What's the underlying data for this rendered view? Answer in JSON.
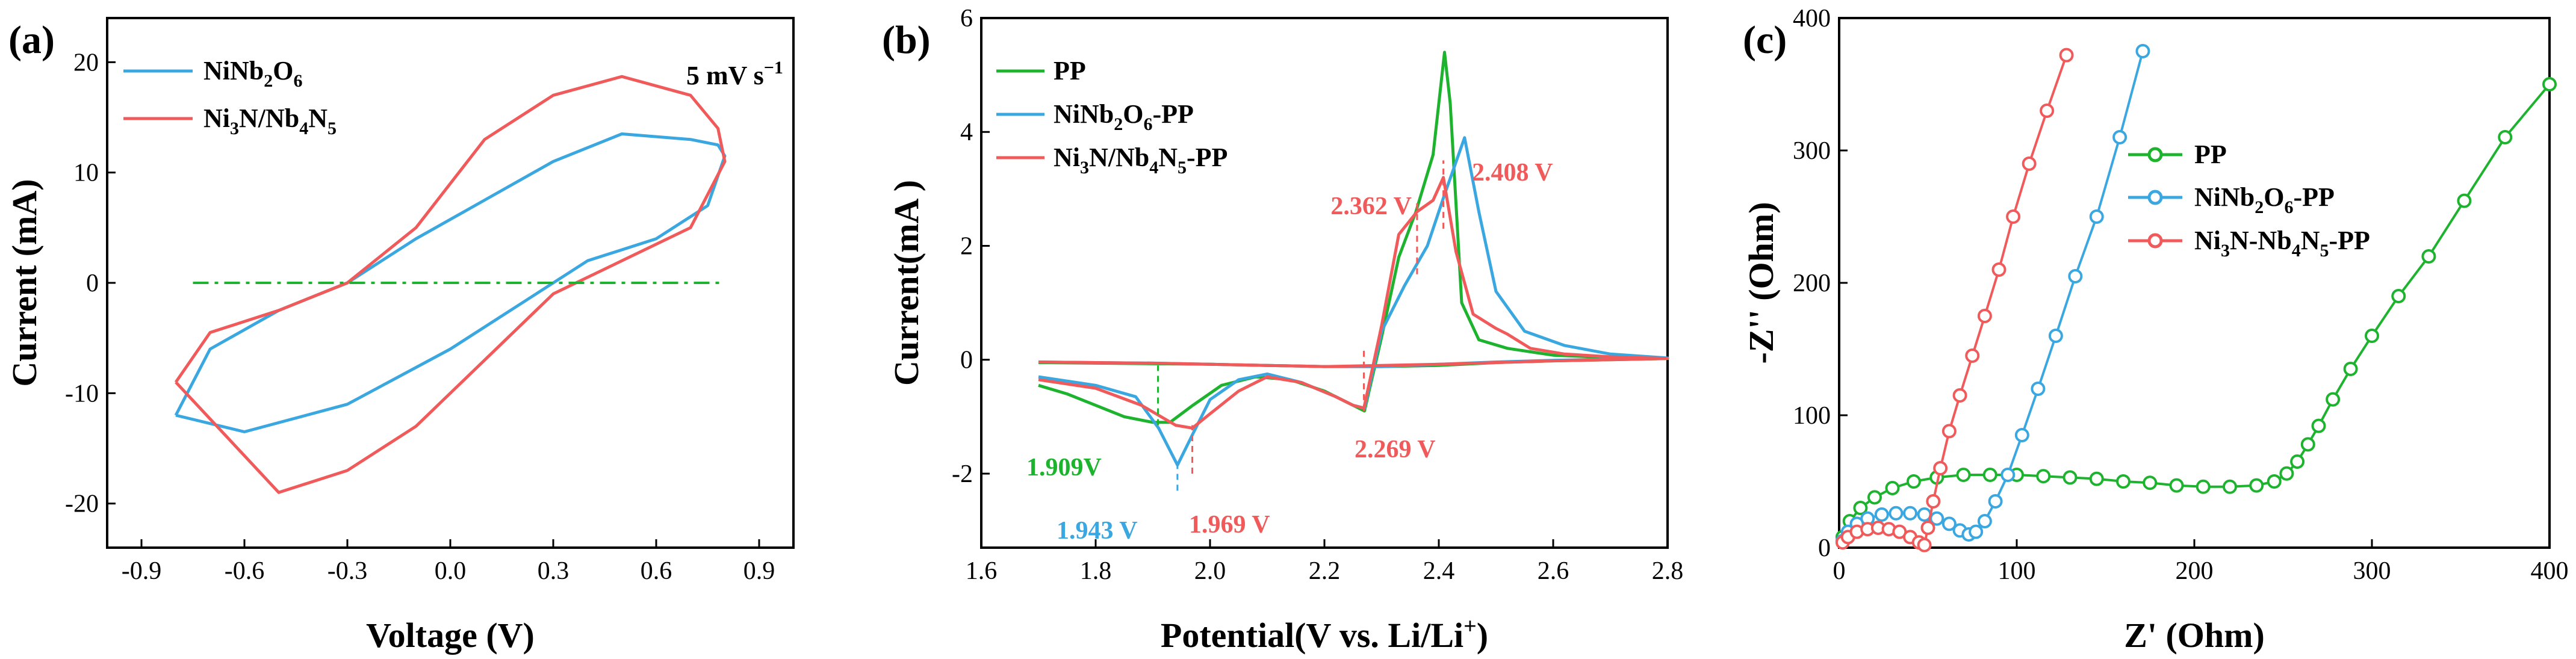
{
  "colors": {
    "green": "#1db32e",
    "blue": "#3aa7e0",
    "red": "#f05a5a",
    "dash_green": "#1db32e"
  },
  "chart_data": [
    {
      "type": "line",
      "panel_label": "(a)",
      "annotation": "5 mV s",
      "annotation_sup": "−1",
      "xlabel": "Voltage (V)",
      "ylabel": "Current (mA)",
      "xlim": [
        -1.0,
        1.0
      ],
      "ylim": [
        -24,
        24
      ],
      "xticks": [
        "-0.9",
        "-0.6",
        "-0.3",
        "0.0",
        "0.3",
        "0.6",
        "0.9"
      ],
      "yticks": [
        "-20",
        "-10",
        "0",
        "10",
        "20"
      ],
      "legend": [
        {
          "base": "NiNb",
          "sub1": "2",
          "mid": "O",
          "sub2": "6",
          "tail": "",
          "color": "blue"
        },
        {
          "base": "Ni",
          "sub1": "3",
          "mid": "N/Nb",
          "sub2": "4",
          "tail": "N",
          "sub3": "5",
          "color": "red"
        }
      ],
      "series": [
        {
          "name": "NiNb2O6",
          "color": "blue",
          "x": [
            -0.8,
            -0.6,
            -0.3,
            0.0,
            0.2,
            0.4,
            0.6,
            0.75,
            0.8,
            0.78,
            0.7,
            0.5,
            0.3,
            0.1,
            -0.1,
            -0.3,
            -0.5,
            -0.7,
            -0.8
          ],
          "y": [
            -12,
            -13.5,
            -11,
            -6,
            -2,
            2,
            4,
            7,
            11.5,
            12.5,
            13,
            13.5,
            11,
            7.5,
            4,
            0,
            -2.5,
            -6,
            -12
          ]
        },
        {
          "name": "Ni3N/Nb4N5",
          "color": "red",
          "x": [
            -0.8,
            -0.5,
            -0.3,
            -0.1,
            0.1,
            0.3,
            0.5,
            0.7,
            0.8,
            0.78,
            0.7,
            0.5,
            0.3,
            0.1,
            -0.1,
            -0.3,
            -0.5,
            -0.7,
            -0.8
          ],
          "y": [
            -9,
            -19,
            -17,
            -13,
            -7,
            -1,
            2,
            5,
            11,
            14,
            17,
            18.7,
            17,
            13,
            5,
            0,
            -2.5,
            -4.5,
            -9
          ]
        },
        {
          "name": "baseline",
          "color": "dash_green",
          "dashed": true,
          "x": [
            -0.75,
            0.8
          ],
          "y": [
            0,
            0
          ]
        }
      ]
    },
    {
      "type": "line",
      "panel_label": "(b)",
      "xlabel": "Potential(V vs. Li/Li",
      "xlabel_sup": "+",
      "xlabel_tail": ")",
      "ylabel": "Current(mA )",
      "xlim": [
        1.6,
        2.8
      ],
      "ylim": [
        -3.3,
        6.0
      ],
      "xticks": [
        "1.6",
        "1.8",
        "2.0",
        "2.2",
        "2.4",
        "2.6",
        "2.8"
      ],
      "yticks": [
        "-2",
        "0",
        "2",
        "4",
        "6"
      ],
      "legend": [
        {
          "base": "PP",
          "color": "green"
        },
        {
          "base": "NiNb",
          "sub1": "2",
          "mid": "O",
          "sub2": "6",
          "tail": "-PP",
          "color": "blue"
        },
        {
          "base": "Ni",
          "sub1": "3",
          "mid": "N/Nb",
          "sub2": "4",
          "tail": "N",
          "sub3": "5",
          "tail2": "-PP",
          "color": "red"
        }
      ],
      "annotations": [
        {
          "text": "2.362 V",
          "color": "red",
          "x": 2.362
        },
        {
          "text": "2.408 V",
          "color": "red",
          "x": 2.408
        },
        {
          "text": "2.269 V",
          "color": "red",
          "x": 2.269
        },
        {
          "text": "1.909V",
          "color": "green",
          "x": 1.909
        },
        {
          "text": "1.943 V",
          "color": "blue",
          "x": 1.943
        },
        {
          "text": "1.969 V",
          "color": "red",
          "x": 1.969
        }
      ],
      "series": [
        {
          "name": "PP",
          "color": "green",
          "x": [
            1.7,
            1.75,
            1.8,
            1.85,
            1.9,
            1.93,
            1.97,
            2.02,
            2.08,
            2.14,
            2.2,
            2.24,
            2.27,
            2.3,
            2.33,
            2.36,
            2.39,
            2.41,
            2.42,
            2.44,
            2.47,
            2.52,
            2.6,
            2.7,
            2.8,
            2.7,
            2.6,
            2.5,
            2.4,
            2.3,
            2.2,
            2.1,
            2.0,
            1.9,
            1.8,
            1.7
          ],
          "y": [
            -0.45,
            -0.6,
            -0.8,
            -1.0,
            -1.1,
            -1.1,
            -0.8,
            -0.45,
            -0.3,
            -0.35,
            -0.55,
            -0.75,
            -0.9,
            0.4,
            1.8,
            2.6,
            3.6,
            5.4,
            4.5,
            1.0,
            0.35,
            0.2,
            0.08,
            0.04,
            0.02,
            0.0,
            -0.02,
            -0.05,
            -0.1,
            -0.12,
            -0.12,
            -0.1,
            -0.08,
            -0.07,
            -0.06,
            -0.05
          ]
        },
        {
          "name": "NiNb2O6-PP",
          "color": "blue",
          "x": [
            1.7,
            1.8,
            1.87,
            1.91,
            1.943,
            1.97,
            2.0,
            2.05,
            2.1,
            2.16,
            2.22,
            2.25,
            2.27,
            2.3,
            2.34,
            2.38,
            2.41,
            2.445,
            2.47,
            2.5,
            2.55,
            2.62,
            2.7,
            2.8,
            2.7,
            2.6,
            2.5,
            2.4,
            2.3,
            2.2,
            2.1,
            2.0,
            1.9,
            1.8,
            1.7
          ],
          "y": [
            -0.3,
            -0.45,
            -0.65,
            -1.2,
            -1.85,
            -1.3,
            -0.7,
            -0.35,
            -0.25,
            -0.4,
            -0.65,
            -0.8,
            -0.85,
            0.5,
            1.3,
            2.0,
            2.9,
            3.9,
            2.6,
            1.2,
            0.5,
            0.25,
            0.1,
            0.03,
            0.01,
            -0.01,
            -0.04,
            -0.08,
            -0.12,
            -0.12,
            -0.1,
            -0.08,
            -0.06,
            -0.05,
            -0.04
          ]
        },
        {
          "name": "Ni3N/Nb4N5-PP",
          "color": "red",
          "x": [
            1.7,
            1.8,
            1.88,
            1.94,
            1.969,
            2.0,
            2.05,
            2.1,
            2.16,
            2.22,
            2.25,
            2.269,
            2.3,
            2.33,
            2.362,
            2.39,
            2.408,
            2.43,
            2.46,
            2.5,
            2.52,
            2.56,
            2.62,
            2.7,
            2.8,
            2.7,
            2.6,
            2.5,
            2.4,
            2.3,
            2.2,
            2.1,
            2.0,
            1.9,
            1.8,
            1.7
          ],
          "y": [
            -0.35,
            -0.5,
            -0.8,
            -1.15,
            -1.2,
            -0.95,
            -0.55,
            -0.3,
            -0.4,
            -0.65,
            -0.8,
            -0.85,
            0.6,
            2.2,
            2.6,
            2.8,
            3.2,
            1.9,
            0.8,
            0.55,
            0.45,
            0.2,
            0.1,
            0.05,
            0.02,
            0.0,
            -0.02,
            -0.05,
            -0.08,
            -0.1,
            -0.12,
            -0.1,
            -0.08,
            -0.06,
            -0.05,
            -0.04
          ]
        }
      ]
    },
    {
      "type": "scatter",
      "panel_label": "(c)",
      "xlabel": "Z' (Ohm)",
      "ylabel": "-Z'' (Ohm)",
      "xlim": [
        0,
        400
      ],
      "ylim": [
        0,
        400
      ],
      "xticks": [
        "0",
        "100",
        "200",
        "300",
        "400"
      ],
      "yticks": [
        "0",
        "100",
        "200",
        "300",
        "400"
      ],
      "legend": [
        {
          "base": "PP",
          "color": "green"
        },
        {
          "base": "NiNb",
          "sub1": "2",
          "mid": "O",
          "sub2": "6",
          "tail": "-PP",
          "color": "blue"
        },
        {
          "base": "Ni",
          "sub1": "3",
          "mid": "N-Nb",
          "sub2": "4",
          "tail": "N",
          "sub3": "5",
          "tail2": "-PP",
          "color": "red"
        }
      ],
      "series": [
        {
          "name": "PP",
          "color": "green",
          "marker": "circle",
          "x": [
            2,
            6,
            12,
            20,
            30,
            42,
            55,
            70,
            85,
            100,
            115,
            130,
            145,
            160,
            175,
            190,
            205,
            220,
            235,
            245,
            252,
            258,
            264,
            270,
            278,
            288,
            300,
            315,
            332,
            352,
            375,
            400
          ],
          "y": [
            8,
            20,
            30,
            38,
            45,
            50,
            53,
            55,
            55,
            55,
            54,
            53,
            52,
            50,
            49,
            47,
            46,
            46,
            47,
            50,
            56,
            65,
            78,
            92,
            112,
            135,
            160,
            190,
            220,
            262,
            310,
            350
          ]
        },
        {
          "name": "NiNb2O6-PP",
          "color": "blue",
          "marker": "circle",
          "x": [
            2,
            5,
            10,
            16,
            24,
            32,
            40,
            48,
            55,
            62,
            68,
            73,
            77,
            82,
            88,
            95,
            103,
            112,
            122,
            133,
            145,
            158,
            171
          ],
          "y": [
            5,
            12,
            18,
            22,
            25,
            26,
            26,
            25,
            22,
            18,
            13,
            10,
            12,
            20,
            35,
            55,
            85,
            120,
            160,
            205,
            250,
            310,
            375
          ]
        },
        {
          "name": "Ni3N-Nb4N5-PP",
          "color": "red",
          "marker": "circle",
          "x": [
            2,
            5,
            10,
            16,
            22,
            28,
            34,
            40,
            45,
            48,
            50,
            53,
            57,
            62,
            68,
            75,
            82,
            90,
            98,
            107,
            117,
            128
          ],
          "y": [
            4,
            8,
            12,
            14,
            15,
            14,
            12,
            8,
            4,
            2,
            15,
            35,
            60,
            88,
            115,
            145,
            175,
            210,
            250,
            290,
            330,
            372
          ]
        }
      ]
    }
  ]
}
